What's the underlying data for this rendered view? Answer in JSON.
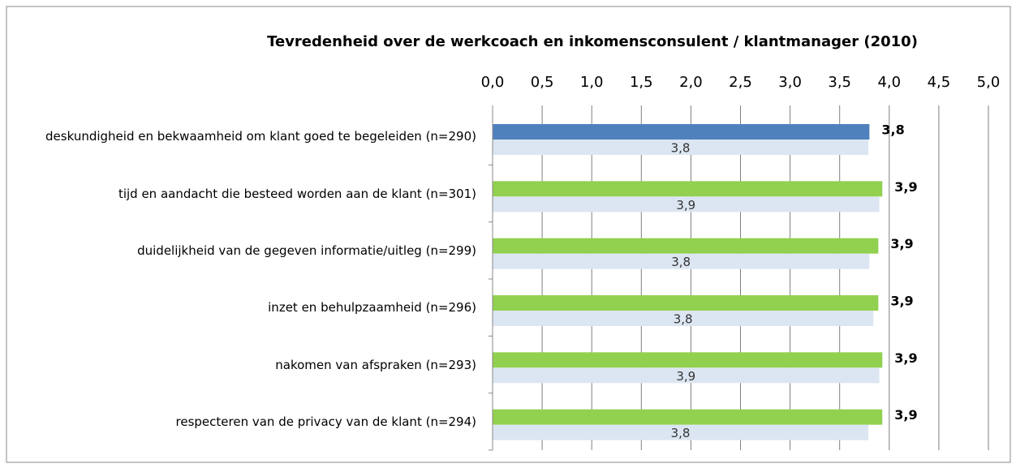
{
  "chart_data": {
    "type": "hbar",
    "title": "Tevredenheid over de werkcoach en inkomensconsulent / klantmanager (2010)",
    "categories": [
      "deskundigheid en bekwaamheid om klant goed te begeleiden (n=290)",
      "tijd en aandacht die besteed worden aan de klant (n=301)",
      "duidelijkheid van de gegeven informatie/uitleg (n=299)",
      "inzet en behulpzaamheid (n=296)",
      "nakomen van afspraken (n=293)",
      "respecteren van de privacy van de klant (n=294)"
    ],
    "series": [
      {
        "colors": [
          "#4f81bd",
          "#92d050",
          "#92d050",
          "#92d050",
          "#92d050",
          "#92d050"
        ],
        "values": [
          3.8,
          3.93,
          3.89,
          3.89,
          3.93,
          3.93
        ],
        "value_labels": [
          "3,8",
          "3,9",
          "3,9",
          "3,9",
          "3,9",
          "3,9"
        ]
      },
      {
        "color": "#dce6f2",
        "values": [
          3.79,
          3.9,
          3.8,
          3.84,
          3.9,
          3.79
        ],
        "value_labels": [
          "3,8",
          "3,9",
          "3,8",
          "3,8",
          "3,9",
          "3,8"
        ]
      }
    ],
    "xlim": [
      0,
      5
    ],
    "xticks": [
      {
        "value": 0,
        "label": "0,0"
      },
      {
        "value": 0.5,
        "label": "0,5"
      },
      {
        "value": 1,
        "label": "1,0"
      },
      {
        "value": 1.5,
        "label": "1,5"
      },
      {
        "value": 2,
        "label": "2,0"
      },
      {
        "value": 2.5,
        "label": "2,5"
      },
      {
        "value": 3,
        "label": "3,0"
      },
      {
        "value": 3.5,
        "label": "3,5"
      },
      {
        "value": 4,
        "label": "4,0"
      },
      {
        "value": 4.5,
        "label": "4,5"
      },
      {
        "value": 5,
        "label": "5,0"
      }
    ],
    "grid": true
  }
}
